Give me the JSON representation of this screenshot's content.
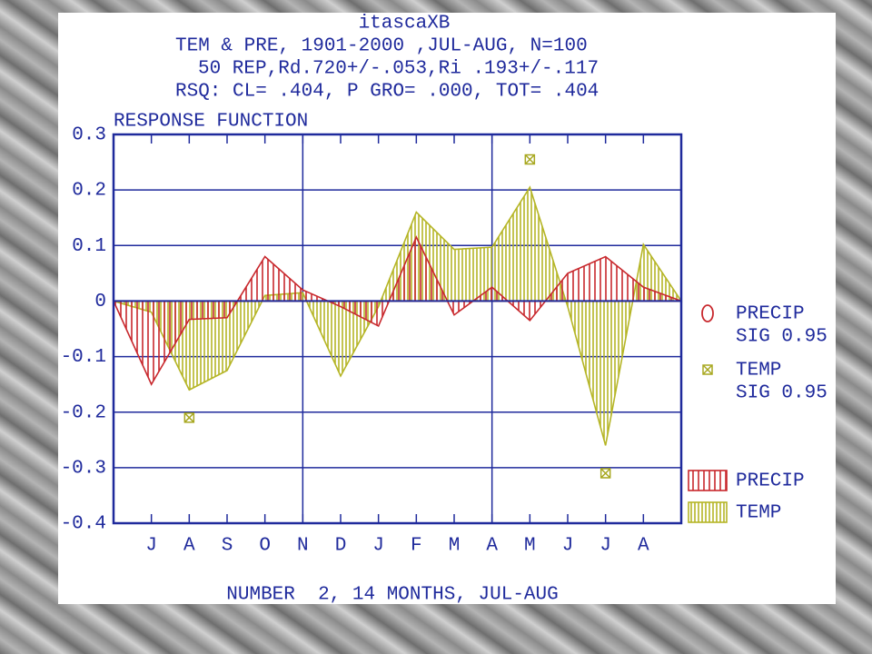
{
  "chart_data": {
    "type": "area",
    "title_lines": [
      "itascaXB",
      "TEM &  PRE, 1901-2000 ,JUL-AUG, N=100",
      "50 REP,Rd.720+/-.053,Ri   .193+/-.117",
      "RSQ: CL= .404, P GRO= .000, TOT= .404"
    ],
    "subtitle": "RESPONSE FUNCTION",
    "xlabel": "NUMBER  2, 14 MONTHS, JUL-AUG",
    "categories": [
      "J",
      "A",
      "S",
      "O",
      "N",
      "D",
      "J",
      "F",
      "M",
      "A",
      "M",
      "J",
      "J",
      "A"
    ],
    "series": [
      {
        "name": "TEMP",
        "color": "#b5b526",
        "values": [
          -0.02,
          -0.16,
          -0.125,
          0.01,
          0.015,
          -0.135,
          -0.01,
          0.16,
          0.093,
          0.097,
          0.205,
          -0.01,
          -0.26,
          0.102
        ]
      },
      {
        "name": "PRECIP",
        "color": "#c8282d",
        "values": [
          -0.15,
          -0.033,
          -0.03,
          0.08,
          0.02,
          -0.01,
          -0.045,
          0.115,
          -0.025,
          0.025,
          -0.035,
          0.05,
          0.08,
          0.025
        ]
      }
    ],
    "significance": [
      {
        "name": "PRECIP",
        "label": "SIG 0.95",
        "color": "#c8282d",
        "values": [
          null,
          null,
          null,
          null,
          null,
          null,
          null,
          null,
          null,
          null,
          null,
          null,
          null,
          null
        ]
      },
      {
        "name": "TEMP",
        "label": "SIG 0.95",
        "color": "#a8a820",
        "values": [
          null,
          -0.21,
          null,
          null,
          null,
          null,
          null,
          null,
          null,
          null,
          0.255,
          null,
          -0.31,
          null
        ]
      }
    ],
    "ylim": [
      -0.4,
      0.3
    ],
    "yticks": [
      0.3,
      0.2,
      0.1,
      0,
      -0.1,
      -0.2,
      -0.3,
      -0.4
    ],
    "grid": true
  }
}
